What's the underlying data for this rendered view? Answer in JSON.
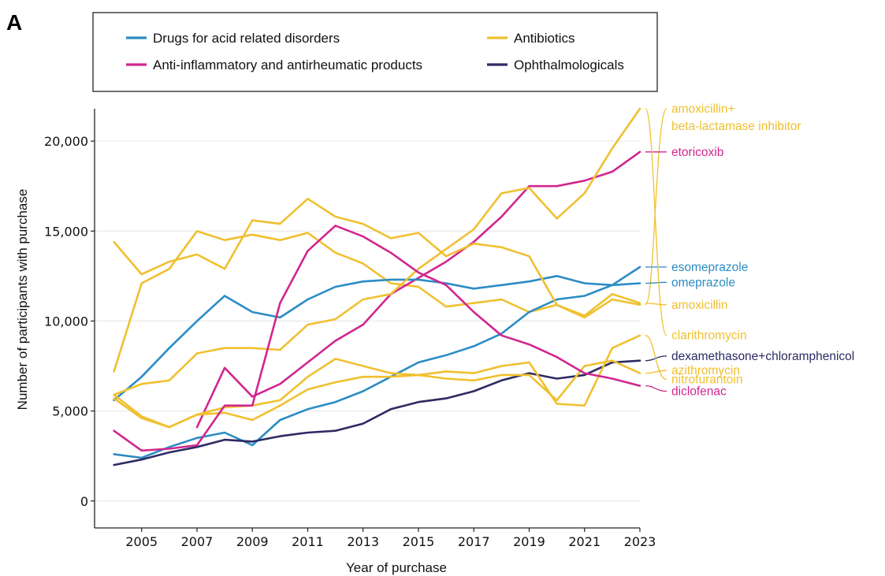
{
  "panel_label": "A",
  "chart_data": {
    "type": "line",
    "title": "",
    "xlabel": "Year of purchase",
    "ylabel": "Number of participants with purchase",
    "xlim": [
      2003.3,
      2023
    ],
    "ylim": [
      -1500,
      21800
    ],
    "x_ticks": [
      2005,
      2007,
      2009,
      2011,
      2013,
      2015,
      2017,
      2019,
      2021,
      2023
    ],
    "x_tick_labels": [
      "2005",
      "2007",
      "2009",
      "2011",
      "2013",
      "2015",
      "2017",
      "2019",
      "2021",
      "2023"
    ],
    "y_ticks": [
      0,
      5000,
      10000,
      15000,
      20000
    ],
    "y_tick_labels": [
      "0",
      "5,000",
      "10,000",
      "15,000",
      "20,000"
    ],
    "grid": "horizontal",
    "legend_position": "top",
    "colors": {
      "Drugs for acid related disorders": "#2b8cc4",
      "Anti-inflammatory and antirheumatic products": "#d1268f",
      "Antibiotics": "#f0c030",
      "Ophthalmologicals": "#2d2a63"
    },
    "legend": [
      {
        "label": "Drugs for acid related disorders",
        "group": "Drugs for acid related disorders"
      },
      {
        "label": "Anti-inflammatory and antirheumatic products",
        "group": "Anti-inflammatory and antirheumatic products"
      },
      {
        "label": "Antibiotics",
        "group": "Antibiotics"
      },
      {
        "label": "Ophthalmologicals",
        "group": "Ophthalmologicals"
      }
    ],
    "series": [
      {
        "name": "amoxicillin+ beta-lactamase inhibitor",
        "label_lines": [
          "amoxicillin+",
          "beta-lactamase inhibitor"
        ],
        "group": "Antibiotics",
        "x": [
          2004,
          2005,
          2006,
          2007,
          2008,
          2009,
          2010,
          2011,
          2012,
          2013,
          2014,
          2015,
          2016,
          2017,
          2018,
          2019,
          2020,
          2021,
          2022,
          2023
        ],
        "y": [
          7200,
          12100,
          12900,
          15000,
          14500,
          14800,
          14500,
          14900,
          13800,
          13200,
          12100,
          11900,
          10800,
          11000,
          11200,
          10500,
          10900,
          10200,
          11200,
          10900
        ]
      },
      {
        "name": "etoricoxib",
        "label_lines": [
          "etoricoxib"
        ],
        "group": "Anti-inflammatory and antirheumatic products",
        "x": [
          2007,
          2008,
          2009,
          2010,
          2011,
          2012,
          2013,
          2014,
          2015,
          2016,
          2017,
          2018,
          2019,
          2020,
          2021,
          2022,
          2023
        ],
        "y": [
          4100,
          7400,
          5800,
          6500,
          7700,
          8900,
          9800,
          11500,
          12400,
          13300,
          14400,
          15800,
          17500,
          17500,
          17800,
          18300,
          19400
        ]
      },
      {
        "name": "esomeprazole",
        "label_lines": [
          "esomeprazole"
        ],
        "group": "Drugs for acid related disorders",
        "x": [
          2004,
          2005,
          2006,
          2007,
          2008,
          2009,
          2010,
          2011,
          2012,
          2013,
          2014,
          2015,
          2016,
          2017,
          2018,
          2019,
          2020,
          2021,
          2022,
          2023
        ],
        "y": [
          2600,
          2400,
          3000,
          3500,
          3800,
          3100,
          4500,
          5100,
          5500,
          6100,
          6900,
          7700,
          8100,
          8600,
          9300,
          10500,
          11200,
          11400,
          12000,
          13000
        ]
      },
      {
        "name": "omeprazole",
        "label_lines": [
          "omeprazole"
        ],
        "group": "Drugs for acid related disorders",
        "x": [
          2004,
          2005,
          2006,
          2007,
          2008,
          2009,
          2010,
          2011,
          2012,
          2013,
          2014,
          2015,
          2016,
          2017,
          2018,
          2019,
          2020,
          2021,
          2022,
          2023
        ],
        "y": [
          5600,
          6900,
          8500,
          10000,
          11400,
          10500,
          10200,
          11200,
          11900,
          12200,
          12300,
          12300,
          12100,
          11800,
          12000,
          12200,
          12500,
          12100,
          12000,
          12100
        ]
      },
      {
        "name": "amoxicillin",
        "label_lines": [
          "amoxicillin"
        ],
        "group": "Antibiotics",
        "x": [
          2004,
          2005,
          2006,
          2007,
          2008,
          2009,
          2010,
          2011,
          2012,
          2013,
          2014,
          2015,
          2016,
          2017,
          2018,
          2019,
          2020,
          2021,
          2022,
          2023
        ],
        "y": [
          14400,
          12600,
          13300,
          13700,
          12900,
          15600,
          15400,
          16800,
          15800,
          15400,
          14600,
          14900,
          13600,
          14300,
          14100,
          13600,
          10900,
          10300,
          11500,
          11000
        ]
      },
      {
        "name": "clarithromycin",
        "label_lines": [
          "clarithromycin"
        ],
        "group": "Antibiotics",
        "x": [
          2004,
          2005,
          2006,
          2007,
          2008,
          2009,
          2010,
          2011,
          2012,
          2013,
          2014,
          2015,
          2016,
          2017,
          2018,
          2019,
          2020,
          2021,
          2022,
          2023
        ],
        "y": [
          5900,
          6500,
          6700,
          8200,
          8500,
          8500,
          8400,
          9800,
          10100,
          11200,
          11500,
          12900,
          14000,
          15100,
          17100,
          17400,
          15700,
          17100,
          19600,
          21800
        ]
      },
      {
        "name": "dexamethasone+chloramphenicol",
        "label_lines": [
          "dexamethasone+chloramphenicol"
        ],
        "group": "Ophthalmologicals",
        "x": [
          2004,
          2005,
          2006,
          2007,
          2008,
          2009,
          2010,
          2011,
          2012,
          2013,
          2014,
          2015,
          2016,
          2017,
          2018,
          2019,
          2020,
          2021,
          2022,
          2023
        ],
        "y": [
          2000,
          2300,
          2700,
          3000,
          3400,
          3300,
          3600,
          3800,
          3900,
          4300,
          5100,
          5500,
          5700,
          6100,
          6700,
          7100,
          6800,
          7000,
          7700,
          7800
        ]
      },
      {
        "name": "azithromycin",
        "label_lines": [
          "azithromycin"
        ],
        "group": "Antibiotics",
        "x": [
          2004,
          2005,
          2006,
          2007,
          2008,
          2009,
          2010,
          2011,
          2012,
          2013,
          2014,
          2015,
          2016,
          2017,
          2018,
          2019,
          2020,
          2021,
          2022,
          2023
        ],
        "y": [
          5900,
          4700,
          4100,
          4800,
          5200,
          5300,
          5600,
          6900,
          7900,
          7500,
          7100,
          7000,
          6800,
          6700,
          7000,
          7000,
          5600,
          7500,
          7800,
          7100
        ]
      },
      {
        "name": "nitrofurantoin",
        "label_lines": [
          "nitrofurantoin"
        ],
        "group": "Antibiotics",
        "x": [
          2004,
          2005,
          2006,
          2007,
          2008,
          2009,
          2010,
          2011,
          2012,
          2013,
          2014,
          2015,
          2016,
          2017,
          2018,
          2019,
          2020,
          2021,
          2022,
          2023
        ],
        "y": [
          5700,
          4600,
          4100,
          4800,
          4900,
          4500,
          5300,
          6200,
          6600,
          6900,
          6900,
          7000,
          7200,
          7100,
          7500,
          7700,
          5400,
          5300,
          8500,
          9200
        ]
      },
      {
        "name": "diclofenac",
        "label_lines": [
          "diclofenac"
        ],
        "group": "Anti-inflammatory and antirheumatic products",
        "x": [
          2004,
          2005,
          2006,
          2007,
          2008,
          2009,
          2010,
          2011,
          2012,
          2013,
          2014,
          2015,
          2016,
          2017,
          2018,
          2019,
          2020,
          2021,
          2022,
          2023
        ],
        "y": [
          3900,
          2800,
          2900,
          3100,
          5300,
          5300,
          11000,
          13900,
          15300,
          14700,
          13800,
          12700,
          12000,
          10500,
          9200,
          8700,
          8000,
          7100,
          6800,
          6400
        ]
      }
    ],
    "end_labels": [
      {
        "series": "amoxicillin+ beta-lactamase inhibitor",
        "lines": [
          "amoxicillin+",
          "beta-lactamase inhibitor"
        ],
        "label_y": 21800
      },
      {
        "series": "etoricoxib",
        "lines": [
          "etoricoxib"
        ],
        "label_y": 19400
      },
      {
        "series": "esomeprazole",
        "lines": [
          "esomeprazole"
        ],
        "label_y": 13000
      },
      {
        "series": "omeprazole",
        "lines": [
          "omeprazole"
        ],
        "label_y": 12150
      },
      {
        "series": "amoxicillin",
        "lines": [
          "amoxicillin"
        ],
        "label_y": 10900
      },
      {
        "series": "clarithromycin",
        "lines": [
          "clarithromycin"
        ],
        "label_y": 9200
      },
      {
        "series": "dexamethasone+chloramphenicol",
        "lines": [
          "dexamethasone+chloramphenicol"
        ],
        "label_y": 8050
      },
      {
        "series": "azithromycin",
        "lines": [
          "azithromycin"
        ],
        "label_y": 7250
      },
      {
        "series": "nitrofurantoin",
        "lines": [
          "nitrofurantoin"
        ],
        "label_y": 6750
      },
      {
        "series": "diclofenac",
        "lines": [
          "diclofenac"
        ],
        "label_y": 6100
      }
    ]
  }
}
